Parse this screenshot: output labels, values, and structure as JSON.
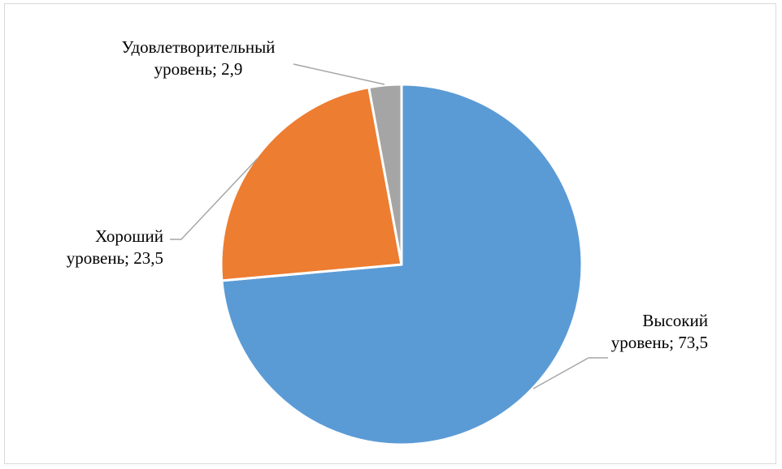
{
  "chart_data": {
    "type": "pie",
    "title": "",
    "start_angle_deg": 0,
    "direction": "clockwise",
    "legend": "none",
    "slices": [
      {
        "name": "Высокий уровень",
        "value": 73.5,
        "color": "#5B9BD5",
        "label_lines": [
          "Высокий",
          "уровень; 73,5"
        ]
      },
      {
        "name": "Хороший уровень",
        "value": 23.5,
        "color": "#ED7D31",
        "label_lines": [
          "Хороший",
          "уровень; 23,5"
        ]
      },
      {
        "name": "Удовлетворительный уровень",
        "value": 2.9,
        "color": "#A5A5A5",
        "label_lines": [
          "Удовлетворительный",
          "уровень; 2,9"
        ]
      }
    ],
    "leader_line_color": "#A6A6A6",
    "slice_border_color": "#FFFFFF"
  }
}
